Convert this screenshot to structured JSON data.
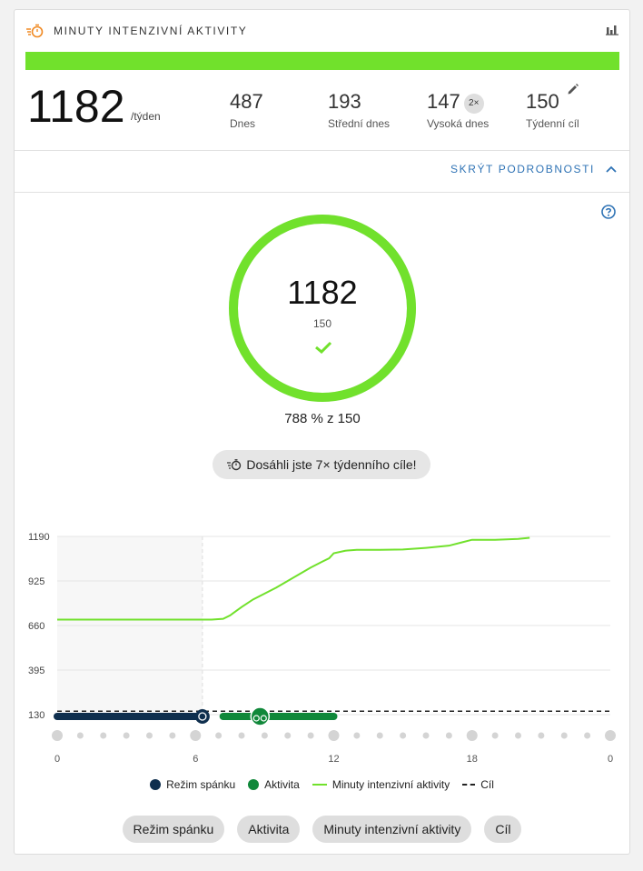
{
  "header": {
    "title": "MINUTY INTENZIVNÍ AKTIVITY",
    "icon": "intensity-minutes-icon",
    "chart_icon": "bar-chart-icon"
  },
  "colors": {
    "accent_green": "#71e12c",
    "activity_green": "#10883a",
    "sleep_navy": "#0f2f4e",
    "link_blue": "#2f73b5",
    "icon_orange": "#f08a24"
  },
  "summary": {
    "total": "1182",
    "unit": "/týden",
    "progress_percent": 100,
    "stats": [
      {
        "value": "487",
        "label": "Dnes"
      },
      {
        "value": "193",
        "label": "Střední dnes"
      },
      {
        "value": "147",
        "label": "Vysoká dnes",
        "badge": "2×"
      },
      {
        "value": "150",
        "label": "Týdenní cíl",
        "editable": true
      }
    ]
  },
  "details_toggle": "SKRÝT PODROBNOSTI",
  "ring": {
    "value": "1182",
    "goal": "150",
    "percent_text": "788 % z 150",
    "goal_met": true,
    "fill_fraction": 1.0
  },
  "achievement": "Dosáhli jste 7× týdenního cíle!",
  "chart_data": {
    "type": "line",
    "y_ticks": [
      "1190",
      "925",
      "660",
      "395",
      "130"
    ],
    "x_ticks": [
      "0",
      "6",
      "12",
      "18",
      "0"
    ],
    "ylim": [
      130,
      1190
    ],
    "xlim": [
      0,
      24
    ],
    "goal": 150,
    "series": [
      {
        "name": "Minuty intenzivní aktivity",
        "x": [
          0,
          6.7,
          7.2,
          7.5,
          8,
          8.5,
          9,
          9.5,
          10,
          10.5,
          11,
          11.5,
          11.8,
          12,
          12.5,
          13,
          14,
          15,
          16,
          17,
          18,
          19,
          20,
          20.5
        ],
        "y": [
          695,
          695,
          700,
          720,
          770,
          815,
          850,
          885,
          925,
          965,
          1005,
          1040,
          1060,
          1090,
          1105,
          1110,
          1110,
          1112,
          1122,
          1135,
          1170,
          1170,
          1175,
          1182
        ]
      }
    ],
    "sleep": {
      "label": "Režim spánku",
      "start": 0,
      "end": 6.3
    },
    "activity": {
      "label": "Aktivita",
      "start": 7.2,
      "end": 12
    },
    "shaded_range": [
      0,
      6.3
    ]
  },
  "legend": [
    {
      "label": "Režim spánku",
      "kind": "dot",
      "color": "#0f2f4e"
    },
    {
      "label": "Aktivita",
      "kind": "dot",
      "color": "#10883a"
    },
    {
      "label": "Minuty intenzivní aktivity",
      "kind": "line"
    },
    {
      "label": "Cíl",
      "kind": "dash"
    }
  ],
  "filters": [
    "Režim spánku",
    "Aktivita",
    "Minuty intenzivní aktivity",
    "Cíl"
  ]
}
